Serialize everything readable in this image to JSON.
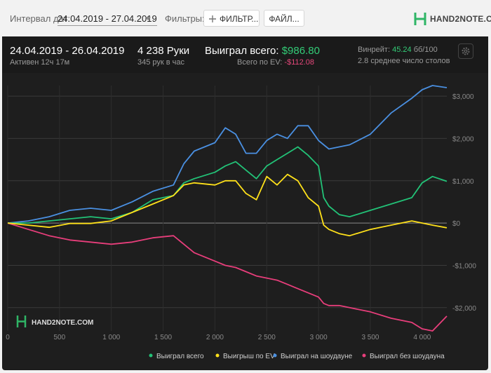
{
  "toolbar": {
    "date_label": "Интервал дат:",
    "date_range": "24.04.2019 - 27.04.2019",
    "filters_label": "Фильтры:",
    "filter_button": "ФИЛЬТР...",
    "file_button": "ФАЙЛ...",
    "logo_text": "HAND2NOTE.COM"
  },
  "summary": {
    "period": "24.04.2019 - 26.04.2019",
    "active": "Активен 12ч 17м",
    "hands": "4 238 Руки",
    "hands_per_hour": "345 рук в час",
    "won_label": "Выиграл всего:",
    "won_value": "$986.80",
    "ev_label": "Всего по EV:",
    "ev_value": "-$112.08",
    "winrate_label": "Винрейт:",
    "winrate_value": "45.24",
    "winrate_unit": "бб/100",
    "tables": "2.8 среднее число столов"
  },
  "colors": {
    "green": "#22c277",
    "yellow": "#ffe11a",
    "blue": "#4a90e2",
    "pink": "#e83e7b",
    "won_value": "#33cc77",
    "ev_value": "#e5477a"
  },
  "chart_data": {
    "type": "line",
    "watermark": "HAND2NOTE.COM",
    "xlim": [
      0,
      4238
    ],
    "ylim": [
      -2550,
      3250
    ],
    "x_ticks": [
      0,
      500,
      1000,
      1500,
      2000,
      2500,
      3000,
      3500,
      4000
    ],
    "x_tick_labels": [
      "0",
      "500",
      "1 000",
      "1 500",
      "2 000",
      "2 500",
      "3 000",
      "3 500",
      "4 000"
    ],
    "y_ticks": [
      3000,
      2000,
      1000,
      0,
      -1000,
      -2000
    ],
    "y_tick_labels": [
      "$3,000",
      "$2,000",
      "$1,000",
      "$0",
      "-$1,000",
      "-$2,000"
    ],
    "grid": true,
    "legend_position": "bottom",
    "x": [
      0,
      200,
      400,
      600,
      800,
      1000,
      1200,
      1400,
      1600,
      1700,
      1800,
      2000,
      2100,
      2200,
      2300,
      2400,
      2500,
      2600,
      2700,
      2800,
      2900,
      3000,
      3050,
      3100,
      3200,
      3300,
      3500,
      3700,
      3900,
      4000,
      4100,
      4238
    ],
    "series": [
      {
        "name": "Выиграл всего",
        "color": "#22c277",
        "values": [
          0,
          0,
          50,
          100,
          150,
          100,
          250,
          550,
          650,
          950,
          1050,
          1200,
          1350,
          1450,
          1250,
          1050,
          1350,
          1500,
          1650,
          1800,
          1600,
          1350,
          600,
          400,
          200,
          150,
          300,
          450,
          600,
          950,
          1100,
          987
        ]
      },
      {
        "name": "Выигрыш по EV",
        "color": "#ffe11a",
        "values": [
          0,
          -50,
          -100,
          -10,
          -10,
          50,
          250,
          450,
          650,
          900,
          950,
          900,
          1000,
          1000,
          700,
          550,
          1100,
          900,
          1150,
          1000,
          600,
          400,
          -50,
          -150,
          -250,
          -300,
          -150,
          -50,
          50,
          0,
          -50,
          -112
        ]
      },
      {
        "name": "Выиграл на шоудауне",
        "color": "#4a90e2",
        "values": [
          0,
          50,
          150,
          300,
          350,
          300,
          500,
          750,
          900,
          1400,
          1700,
          1900,
          2250,
          2100,
          1650,
          1650,
          1950,
          2100,
          2000,
          2300,
          2300,
          1950,
          1850,
          1750,
          1800,
          1850,
          2100,
          2600,
          2950,
          3150,
          3250,
          3200
        ]
      },
      {
        "name": "Выиграл без шоудауна",
        "color": "#e83e7b",
        "values": [
          0,
          -150,
          -300,
          -400,
          -450,
          -500,
          -450,
          -350,
          -300,
          -500,
          -700,
          -900,
          -1000,
          -1050,
          -1150,
          -1250,
          -1300,
          -1350,
          -1450,
          -1550,
          -1650,
          -1750,
          -1900,
          -1950,
          -1950,
          -2000,
          -2100,
          -2250,
          -2350,
          -2500,
          -2550,
          -2200
        ]
      }
    ]
  }
}
